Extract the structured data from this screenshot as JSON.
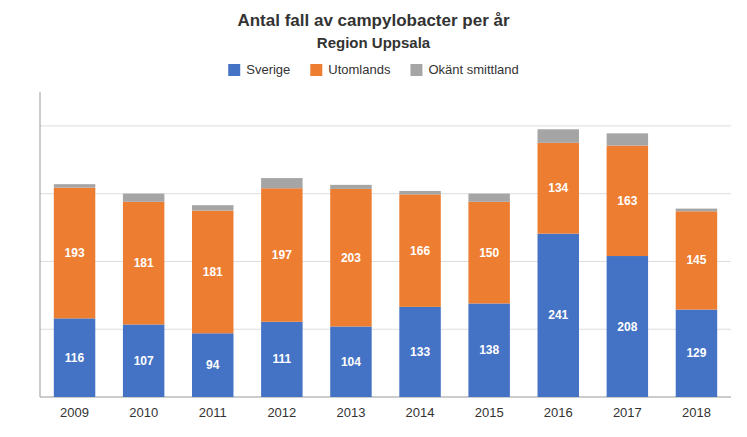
{
  "chart_data": {
    "type": "bar",
    "stacked": true,
    "title": "Antal fall av campylobacter per år",
    "subtitle": "Region Uppsala",
    "categories": [
      "2009",
      "2010",
      "2011",
      "2012",
      "2013",
      "2014",
      "2015",
      "2016",
      "2017",
      "2018"
    ],
    "series": [
      {
        "name": "Sverige",
        "color": "#4472C4",
        "data_labels": true,
        "values": [
          116,
          107,
          94,
          111,
          104,
          133,
          138,
          241,
          208,
          129
        ]
      },
      {
        "name": "Utomlands",
        "color": "#ED7D31",
        "data_labels": true,
        "values": [
          193,
          181,
          181,
          197,
          203,
          166,
          150,
          134,
          163,
          145
        ]
      },
      {
        "name": "Okänt smittland",
        "color": "#A5A5A5",
        "data_labels": false,
        "values": [
          5,
          12,
          8,
          15,
          6,
          5,
          12,
          20,
          18,
          4
        ]
      }
    ],
    "ylim": [
      0,
      450
    ],
    "yticks": [
      100,
      200,
      300,
      400
    ],
    "grid": true,
    "legend": "top",
    "tick_labels": "x"
  }
}
